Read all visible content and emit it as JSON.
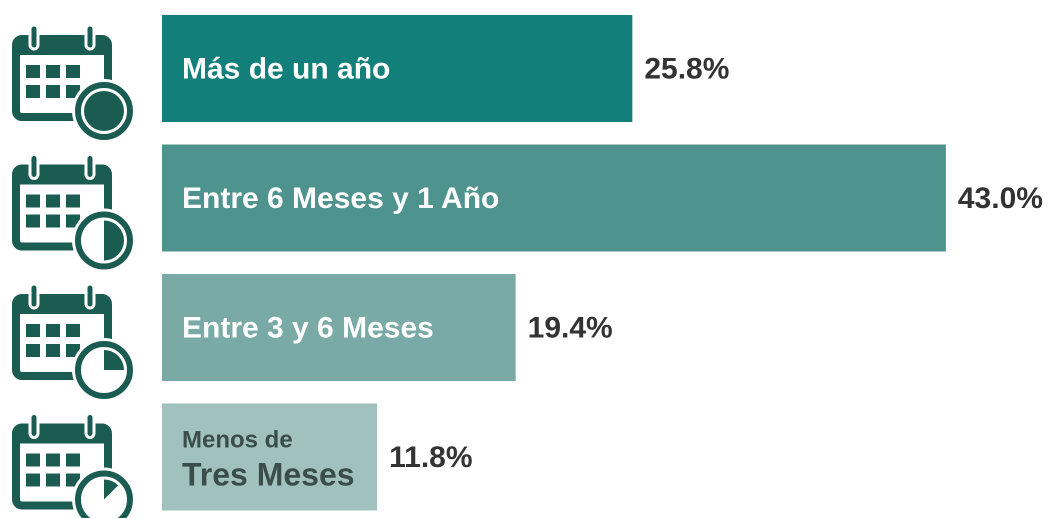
{
  "chart_data": {
    "type": "bar",
    "categories": [
      "Más de un año",
      "Entre 6 Meses y 1 Año",
      "Entre 3 y 6 Meses",
      [
        "Menos de",
        "Tres Meses"
      ]
    ],
    "values": [
      25.8,
      43.0,
      19.4,
      11.8
    ],
    "value_labels": [
      "25.8%",
      "43.0%",
      "19.4%",
      "11.8%"
    ],
    "colors": [
      "#137f7a",
      "#4f938e",
      "#7aaaa6",
      "#a1c1bf"
    ]
  }
}
